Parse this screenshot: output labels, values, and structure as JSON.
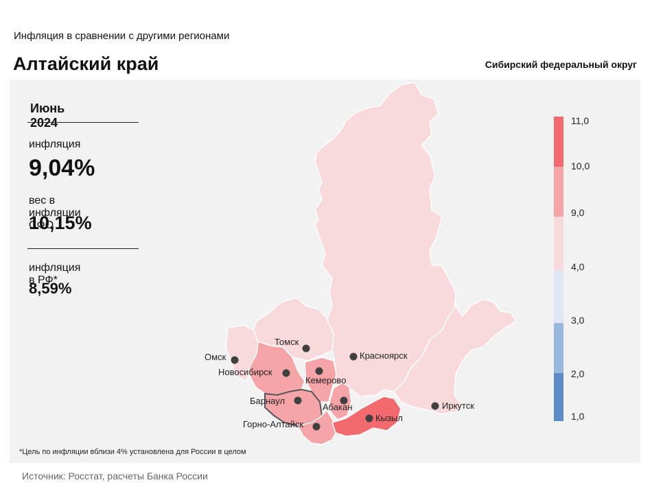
{
  "header": {
    "subtitle": "Инфляция  в сравнении  с другими  регионами",
    "title": "Алтайский край",
    "district": "Сибирский федеральный округ"
  },
  "stats": {
    "period": "Июнь 2024",
    "inflation_label": "инфляция",
    "inflation_value": "9,04%",
    "weight_label": "вес в инфляции  СФО",
    "weight_value": "10,15%",
    "rf_label": "инфляция  в РФ*",
    "rf_value": "8,59%"
  },
  "footnote": "*Цель по инфляции вблизи 4% установлена для России в целом",
  "source": "Источник: Росстат, расчеты Банка России",
  "colors": {
    "band_9_11_high": "#f26a6e",
    "band_9_10": "#f5a5a7",
    "band_4_9": "#f8dadd",
    "band_3_4": "#dfe6f4",
    "band_2_3": "#9ab8de",
    "band_1_2": "#5b8cc8",
    "selected_border": "#555555"
  },
  "legend": {
    "ticks": [
      "11,0",
      "10,0",
      "9,0",
      "4,0",
      "3,0",
      "2,0",
      "1,0"
    ]
  },
  "cities": [
    {
      "name": "Томск"
    },
    {
      "name": "Омск"
    },
    {
      "name": "Новосибирск"
    },
    {
      "name": "Кемерово"
    },
    {
      "name": "Красноярск"
    },
    {
      "name": "Барнаул"
    },
    {
      "name": "Абакан"
    },
    {
      "name": "Горно-Алтайск"
    },
    {
      "name": "Кызыл"
    },
    {
      "name": "Иркутск"
    }
  ]
}
